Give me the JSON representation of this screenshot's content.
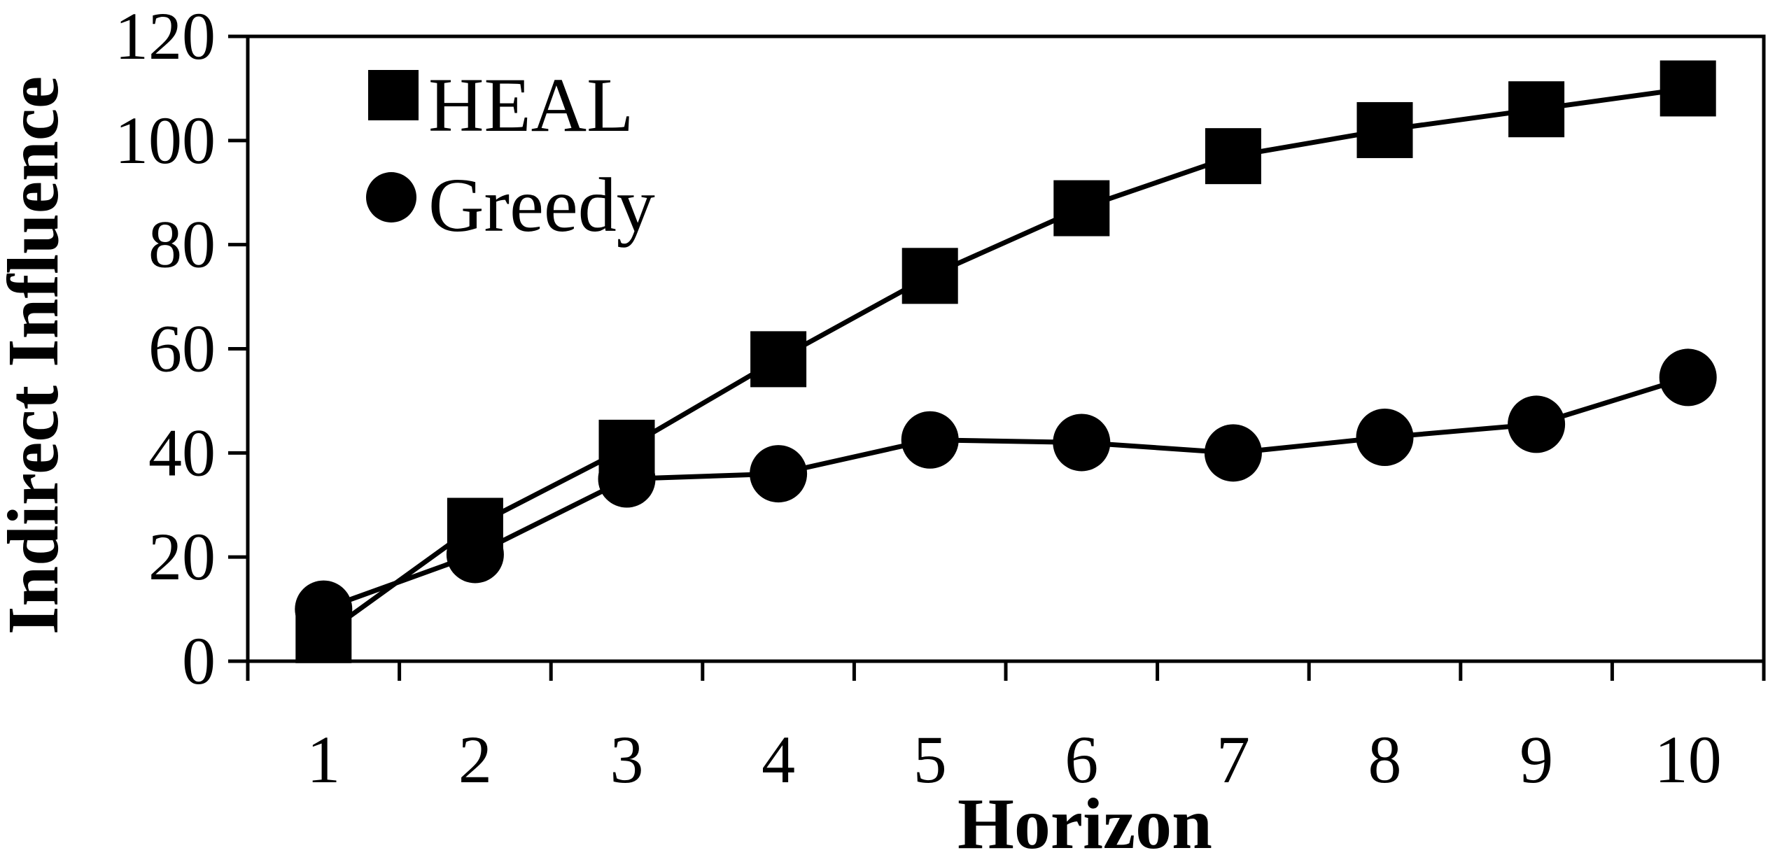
{
  "chart_data": {
    "type": "line",
    "xlabel": "Horizon",
    "ylabel": "Indirect Influence",
    "categories": [
      "1",
      "2",
      "3",
      "4",
      "5",
      "6",
      "7",
      "8",
      "9",
      "10"
    ],
    "ylim": [
      0,
      120
    ],
    "yticks": [
      "0",
      "20",
      "40",
      "60",
      "80",
      "100",
      "120"
    ],
    "grid": false,
    "legend_position": "top-left",
    "series": [
      {
        "name": "HEAL",
        "marker": "square",
        "color": "#000000",
        "values": [
          5,
          26,
          41,
          58,
          74,
          87,
          97,
          102,
          106,
          110
        ]
      },
      {
        "name": "Greedy",
        "marker": "circle",
        "color": "#000000",
        "values": [
          10,
          20.5,
          35,
          36,
          42.5,
          42,
          40,
          43,
          45.5,
          54.5
        ]
      }
    ]
  }
}
